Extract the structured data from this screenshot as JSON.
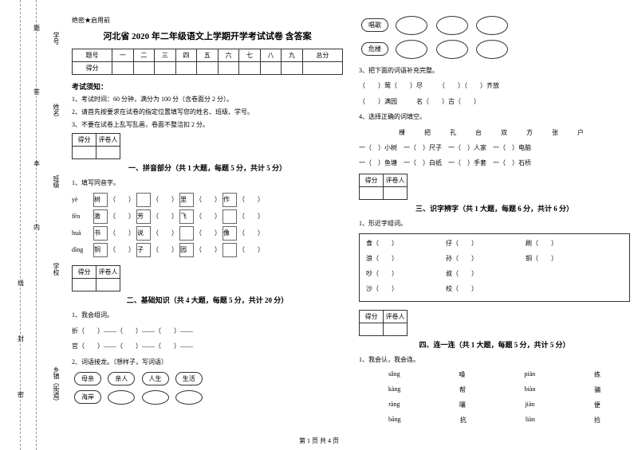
{
  "sidebar": {
    "labels": [
      "学号",
      "姓名",
      "班级",
      "学校",
      "乡镇（街道）"
    ],
    "marks": [
      "题",
      "答",
      "本",
      "内",
      "线",
      "封",
      "密"
    ]
  },
  "confidential": "绝密★启用前",
  "title": "河北省 2020 年二年级语文上学期开学考试试卷 含答案",
  "score_headers": [
    "题号",
    "一",
    "二",
    "三",
    "四",
    "五",
    "六",
    "七",
    "八",
    "九",
    "总分"
  ],
  "score_row2": "得分",
  "notice_title": "考试须知：",
  "notices": [
    "1、考试时间：60 分钟，满分为 100 分（含卷面分 2 分）。",
    "2、请首先按要求在试卷的指定位置填写您的姓名、班级、学号。",
    "3、不要在试卷上乱写乱画，卷面不整洁扣 2 分。"
  ],
  "grade": [
    "得分",
    "评卷人"
  ],
  "sections": {
    "s1": "一、拼音部分（共 1 大题，每题 5 分，共计 5 分）",
    "s2": "二、基础知识（共 4 大题，每题 5 分，共计 20 分）",
    "s3": "三、识字辨字（共 1 大题，每题 6 分，共计 6 分）",
    "s4": "四、连一连（共 1 大题，每题 5 分，共计 5 分）"
  },
  "q1_1": "1、填写同音字。",
  "pinyin_rows": [
    {
      "py": "yè",
      "chars": [
        "树",
        "",
        "里",
        "作"
      ]
    },
    {
      "py": "fēn",
      "chars": [
        "激",
        "芳",
        "飞",
        ""
      ]
    },
    {
      "py": "huà",
      "chars": [
        "书",
        "说",
        "",
        "像"
      ]
    },
    {
      "py": "dìng",
      "chars": [
        "铜",
        "子",
        "园",
        ""
      ]
    }
  ],
  "q2_1": "1、我会组词。",
  "q2_1_lines": [
    "折（　　）——（　　）——（　　）——",
    "官（　　）——（　　）——（　　）——"
  ],
  "q2_2": "2、词语接龙。（想样子，写词语）",
  "word_bubbles1": [
    "母亲",
    "亲人",
    "人生",
    "生活"
  ],
  "word_bubbles2": [
    "海岸"
  ],
  "word_bubbles3": [
    "唱歌"
  ],
  "word_bubbles4": [
    "危楼"
  ],
  "q2_3": "3、把下面的词语补充完整。",
  "q2_3_lines": [
    "（　　）莺（　　）尽　　　（　　）（　　）齐放",
    "（　　）满园　　　名（　　）古（　　）"
  ],
  "q2_4": "4、选择正确的词填空。",
  "q2_4_box": "棵　把　孔　台　双　方　张　户",
  "q2_4_lines": [
    "一（　）小树　一（　）尺子　一（　）人家　一（　）电脑",
    "一（　）鱼塘　一（　）白纸　一（　）手套　一（　）石桥"
  ],
  "q3_1": "1、形近字组词。",
  "q3_1_rows": [
    [
      "食（　　）",
      "仔（　　）",
      "刷（　　）"
    ],
    [
      "浪（　　）",
      "孙（　　）",
      "铜（　　）"
    ],
    [
      "吵（　　）",
      "叔（　　）",
      ""
    ],
    [
      "沙（　　）",
      "校（　　）",
      ""
    ]
  ],
  "q4_1": "1、我会认，我会连。",
  "match_rows": [
    [
      "sǎng",
      "嗓",
      "piàn",
      "练"
    ],
    [
      "kàng",
      "帮",
      "biàn",
      "骗"
    ],
    [
      "ràng",
      "嚷",
      "jiàn",
      "便"
    ],
    [
      "bāng",
      "抗",
      "liàn",
      "捡"
    ]
  ],
  "page_num": "第 1 页 共 4 页"
}
